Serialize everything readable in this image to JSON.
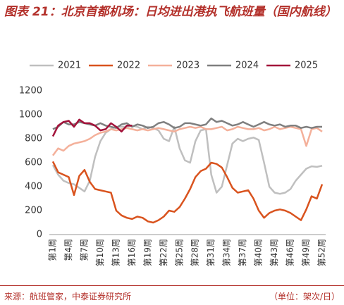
{
  "chart_data": {
    "type": "line",
    "title": "图表 21：北京首都机场：日均进出港执飞航班量（国内航线）",
    "source": "来源：航班管家，中泰证券研究所",
    "unit": "（单位：架次/日）",
    "categories": [
      "第1周",
      null,
      null,
      "第4周",
      null,
      null,
      "第7周",
      null,
      null,
      "第10周",
      null,
      null,
      "第13周",
      null,
      null,
      "第16周",
      null,
      null,
      "第19周",
      null,
      null,
      "第22周",
      null,
      null,
      "第25周",
      null,
      null,
      "第28周",
      null,
      null,
      "第31周",
      null,
      null,
      "第34周",
      null,
      null,
      "第37周",
      null,
      null,
      "第40周",
      null,
      null,
      "第43周",
      null,
      null,
      "第46周",
      null,
      null,
      "第49周",
      null,
      null,
      "第52周"
    ],
    "ylim": [
      0,
      1200
    ],
    "yticks": [
      0,
      200,
      400,
      600,
      800,
      1000,
      1200
    ],
    "legend": "top",
    "series": [
      {
        "name": "2021",
        "color": "#bfbfbf",
        "values": [
          580,
          500,
          450,
          430,
          420,
          390,
          360,
          450,
          650,
          780,
          850,
          880,
          900,
          900,
          900,
          910,
          900,
          880,
          900,
          890,
          870,
          800,
          780,
          900,
          720,
          620,
          600,
          780,
          870,
          880,
          500,
          350,
          400,
          580,
          760,
          800,
          780,
          800,
          810,
          790,
          600,
          400,
          350,
          340,
          350,
          380,
          450,
          500,
          550,
          570,
          565,
          575
        ]
      },
      {
        "name": "2022",
        "color": "#d9531e",
        "values": [
          610,
          520,
          500,
          480,
          330,
          490,
          540,
          440,
          380,
          370,
          360,
          350,
          200,
          160,
          140,
          130,
          150,
          140,
          110,
          100,
          120,
          150,
          200,
          190,
          230,
          300,
          380,
          480,
          530,
          550,
          600,
          590,
          560,
          480,
          390,
          350,
          360,
          370,
          300,
          200,
          140,
          180,
          200,
          210,
          200,
          180,
          150,
          120,
          210,
          320,
          300,
          420
        ]
      },
      {
        "name": "2023",
        "color": "#f4b09a",
        "values": [
          660,
          720,
          700,
          740,
          760,
          770,
          780,
          800,
          830,
          850,
          860,
          880,
          870,
          880,
          890,
          880,
          870,
          880,
          870,
          880,
          890,
          880,
          870,
          860,
          880,
          890,
          900,
          890,
          900,
          880,
          880,
          890,
          900,
          870,
          880,
          900,
          890,
          880,
          880,
          890,
          870,
          880,
          900,
          880,
          890,
          900,
          890,
          880,
          740,
          880,
          890,
          860
        ]
      },
      {
        "name": "2024",
        "color": "#7f7f7f",
        "values": [
          880,
          900,
          940,
          920,
          920,
          940,
          930,
          920,
          910,
          930,
          910,
          900,
          890,
          920,
          930,
          900,
          920,
          910,
          890,
          900,
          930,
          940,
          920,
          890,
          900,
          930,
          930,
          920,
          910,
          920,
          970,
          940,
          950,
          930,
          910,
          920,
          940,
          920,
          900,
          920,
          940,
          920,
          910,
          920,
          900,
          910,
          910,
          890,
          900,
          890,
          900,
          900
        ]
      },
      {
        "name": "2025",
        "color": "#a3123a",
        "values": [
          820,
          910,
          940,
          950,
          900,
          960,
          930,
          930,
          910,
          870,
          880,
          930,
          900,
          860,
          910,
          910,
          null,
          null,
          null,
          null,
          null,
          null,
          null,
          null,
          null,
          null,
          null,
          null,
          null,
          null,
          null,
          null,
          null,
          null,
          null,
          null,
          null,
          null,
          null,
          null,
          null,
          null,
          null,
          null,
          null,
          null,
          null,
          null,
          null,
          null,
          null,
          null
        ]
      }
    ]
  }
}
